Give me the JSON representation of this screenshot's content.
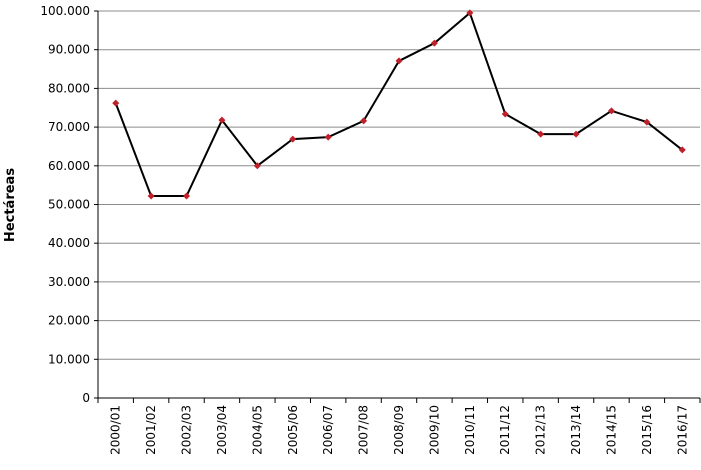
{
  "chart_data": {
    "type": "line",
    "y_label": "Hectáreas",
    "categories": [
      "2000/01",
      "2001/02",
      "2002/03",
      "2003/04",
      "2004/05",
      "2005/06",
      "2006/07",
      "2007/08",
      "2008/09",
      "2009/10",
      "2010/11",
      "2011/12",
      "2012/13",
      "2013/14",
      "2014/15",
      "2015/16",
      "2016/17"
    ],
    "series": [
      {
        "color": "#000000",
        "marker_color": "#c0202a",
        "values": [
          76200,
          52200,
          52200,
          71800,
          60000,
          66900,
          67400,
          71600,
          87100,
          91700,
          99500,
          73400,
          68200,
          68200,
          74200,
          71300,
          64100
        ]
      }
    ],
    "ylim": [
      0,
      100000
    ],
    "yticks": [
      0,
      {
        "value": 10000,
        "label": "10.000"
      },
      {
        "value": 20000,
        "label": "20.000"
      },
      {
        "value": 30000,
        "label": "30.000"
      },
      {
        "value": 40000,
        "label": "40.000"
      },
      {
        "value": 50000,
        "label": "50.000"
      },
      {
        "value": 60000,
        "label": "60.000"
      },
      {
        "value": 70000,
        "label": "70.000"
      },
      {
        "value": 80000,
        "label": "80.000"
      },
      {
        "value": 90000,
        "label": "90.000"
      },
      {
        "value": 100000,
        "label": "100.000"
      }
    ],
    "grid": true
  }
}
